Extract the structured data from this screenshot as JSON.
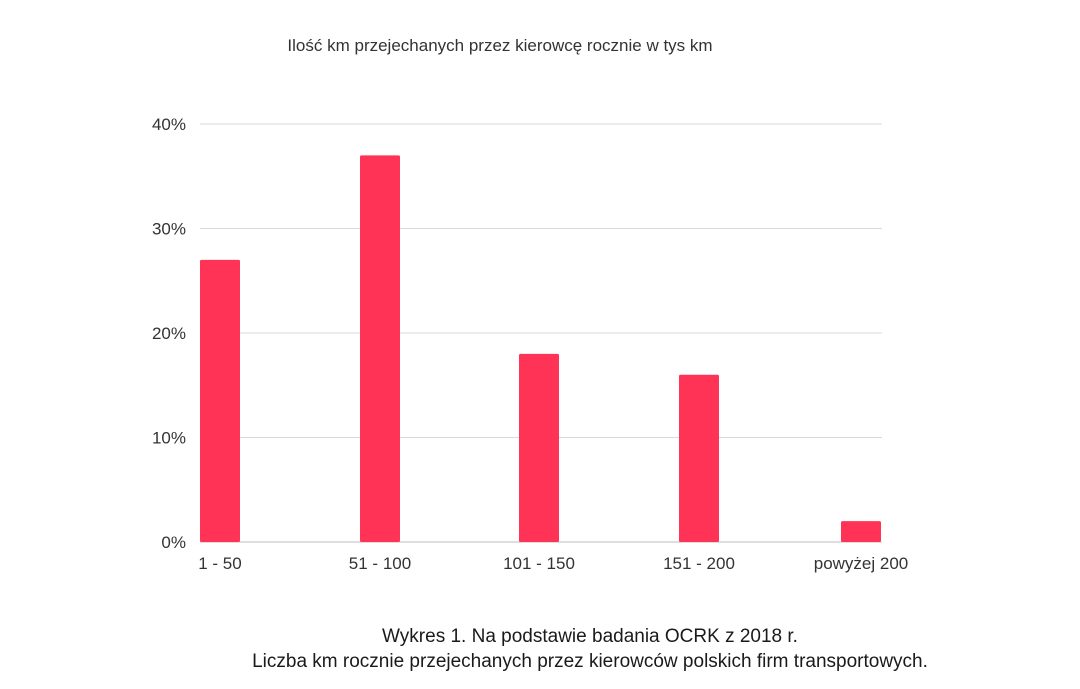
{
  "chart_data": {
    "type": "bar",
    "title": "Ilość km przejechanych przez kierowcę rocznie w tys km",
    "categories": [
      "1 - 50",
      "51 - 100",
      "101 - 150",
      "151 - 200",
      "powyżej 200"
    ],
    "values": [
      27,
      37,
      18,
      16,
      2
    ],
    "ylim": [
      0,
      40
    ],
    "yticks": [
      0,
      10,
      20,
      30,
      40
    ],
    "ytick_labels": [
      "0%",
      "10%",
      "20%",
      "30%",
      "40%"
    ],
    "y_unit": "%",
    "grid": true,
    "legend": "none",
    "bar_color": "#ff3355",
    "grid_color": "#d9d9d9"
  },
  "caption": {
    "line1": "Wykres 1. Na podstawie badania OCRK z 2018 r.",
    "line2": "Liczba km rocznie przejechanych przez kierowców polskich firm transportowych."
  }
}
